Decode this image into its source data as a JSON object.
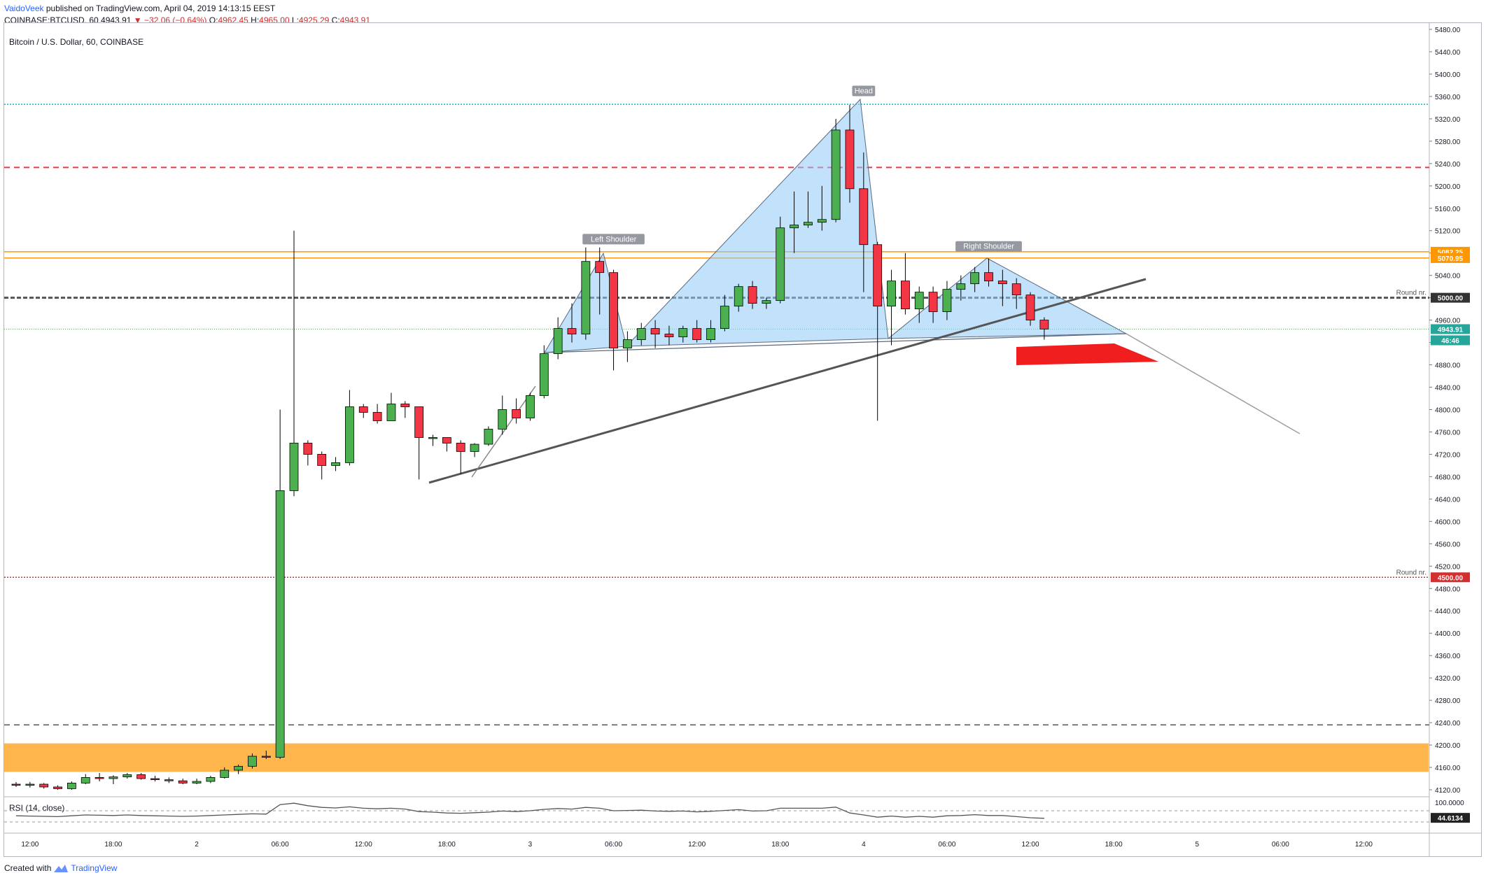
{
  "header": {
    "author": "VaidoVeek",
    "published_text": "published on TradingView.com, April 04, 2019 14:13:15 EEST",
    "symbol": "COINBASE:BTCUSD, 60",
    "last": "4943.91",
    "change": "−32.06 (−0.64%)",
    "o_label": "O:",
    "o": "4962.45",
    "h_label": "H:",
    "h": "4965.00",
    "l_label": "L:",
    "l": "4925.29",
    "c_label": "C:",
    "c": "4943.91"
  },
  "chart_title": "Bitcoin / U.S. Dollar, 60, COINBASE",
  "rsi_label": "RSI (14, close)",
  "footer": {
    "created_with": "Created with",
    "brand": "TradingView"
  },
  "colors": {
    "up": "#4caf50",
    "down": "#f23645",
    "pattern_fill": "#90caf9",
    "orange": "#ff9800",
    "support_zone": "#ffb74d",
    "red_line": "#f23645",
    "cyan_line": "#00bcd4",
    "trend": "#555555"
  },
  "chart_data": {
    "type": "candlestick",
    "ylim": [
      4110,
      5490
    ],
    "y_ticks": [
      4120,
      4160,
      4200,
      4240,
      4280,
      4320,
      4360,
      4400,
      4440,
      4480,
      4520,
      4560,
      4600,
      4640,
      4680,
      4720,
      4760,
      4800,
      4840,
      4880,
      4920,
      4960,
      5000,
      5040,
      5080,
      5120,
      5160,
      5200,
      5240,
      5280,
      5320,
      5360,
      5400,
      5440,
      5480
    ],
    "y_tick_labels": [
      "4120.00",
      "4160.00",
      "4200.00",
      "4240.00",
      "4280.00",
      "4320.00",
      "4360.00",
      "4400.00",
      "4440.00",
      "4480.00",
      "4520.00",
      "4560.00",
      "4600.00",
      "4640.00",
      "4680.00",
      "4720.00",
      "4760.00",
      "4800.00",
      "4840.00",
      "4880.00",
      "4920.00",
      "4960.00",
      "5000.00",
      "5040.00",
      "5080.00",
      "5120.00",
      "5160.00",
      "5200.00",
      "5240.00",
      "5280.00",
      "5320.00",
      "5360.00",
      "5400.00",
      "5440.00",
      "5480.00"
    ],
    "x_tick_labels": [
      {
        "label": "12:00",
        "bar": 1
      },
      {
        "label": "18:00",
        "bar": 7
      },
      {
        "label": "2",
        "bar": 13
      },
      {
        "label": "06:00",
        "bar": 19
      },
      {
        "label": "12:00",
        "bar": 25
      },
      {
        "label": "18:00",
        "bar": 31
      },
      {
        "label": "3",
        "bar": 37
      },
      {
        "label": "06:00",
        "bar": 43
      },
      {
        "label": "12:00",
        "bar": 49
      },
      {
        "label": "18:00",
        "bar": 55
      },
      {
        "label": "4",
        "bar": 61
      },
      {
        "label": "06:00",
        "bar": 67
      },
      {
        "label": "12:00",
        "bar": 73
      },
      {
        "label": "18:00",
        "bar": 79
      },
      {
        "label": "5",
        "bar": 85
      },
      {
        "label": "06:00",
        "bar": 91
      },
      {
        "label": "12:00",
        "bar": 97
      }
    ],
    "candles": [
      [
        4130,
        4134,
        4125,
        4128
      ],
      [
        4128,
        4134,
        4124,
        4130
      ],
      [
        4130,
        4132,
        4122,
        4125
      ],
      [
        4125,
        4128,
        4120,
        4122
      ],
      [
        4122,
        4135,
        4120,
        4132
      ],
      [
        4132,
        4148,
        4130,
        4142
      ],
      [
        4142,
        4150,
        4135,
        4140
      ],
      [
        4140,
        4146,
        4130,
        4143
      ],
      [
        4143,
        4150,
        4140,
        4147
      ],
      [
        4147,
        4150,
        4138,
        4140
      ],
      [
        4140,
        4145,
        4135,
        4138
      ],
      [
        4138,
        4142,
        4132,
        4136
      ],
      [
        4136,
        4140,
        4130,
        4132
      ],
      [
        4132,
        4140,
        4130,
        4135
      ],
      [
        4135,
        4145,
        4132,
        4142
      ],
      [
        4142,
        4160,
        4140,
        4155
      ],
      [
        4155,
        4165,
        4148,
        4162
      ],
      [
        4162,
        4185,
        4158,
        4180
      ],
      [
        4180,
        4190,
        4175,
        4178
      ],
      [
        4178,
        4800,
        4175,
        4655
      ],
      [
        4655,
        5120,
        4645,
        4740
      ],
      [
        4740,
        4745,
        4700,
        4720
      ],
      [
        4720,
        4725,
        4675,
        4700
      ],
      [
        4700,
        4715,
        4690,
        4705
      ],
      [
        4705,
        4835,
        4700,
        4805
      ],
      [
        4805,
        4810,
        4785,
        4795
      ],
      [
        4795,
        4810,
        4775,
        4780
      ],
      [
        4780,
        4830,
        4780,
        4810
      ],
      [
        4810,
        4815,
        4785,
        4805
      ],
      [
        4805,
        4805,
        4675,
        4750
      ],
      [
        4750,
        4755,
        4735,
        4750
      ],
      [
        4750,
        4750,
        4725,
        4740
      ],
      [
        4740,
        4745,
        4685,
        4725
      ],
      [
        4725,
        4740,
        4715,
        4738
      ],
      [
        4738,
        4770,
        4735,
        4765
      ],
      [
        4765,
        4825,
        4755,
        4800
      ],
      [
        4800,
        4820,
        4775,
        4785
      ],
      [
        4785,
        4830,
        4780,
        4825
      ],
      [
        4825,
        4915,
        4820,
        4900
      ],
      [
        4900,
        4965,
        4890,
        4945
      ],
      [
        4945,
        4990,
        4920,
        4935
      ],
      [
        4935,
        5090,
        4925,
        5065
      ],
      [
        5065,
        5090,
        4970,
        5045
      ],
      [
        5045,
        5050,
        4870,
        4910
      ],
      [
        4910,
        4940,
        4885,
        4925
      ],
      [
        4925,
        4955,
        4915,
        4945
      ],
      [
        4945,
        4960,
        4910,
        4935
      ],
      [
        4935,
        4950,
        4915,
        4930
      ],
      [
        4930,
        4950,
        4920,
        4945
      ],
      [
        4945,
        4960,
        4920,
        4925
      ],
      [
        4925,
        4960,
        4920,
        4945
      ],
      [
        4945,
        5005,
        4940,
        4985
      ],
      [
        4985,
        5025,
        4975,
        5020
      ],
      [
        5020,
        5030,
        4980,
        4990
      ],
      [
        4990,
        5000,
        4980,
        4995
      ],
      [
        4995,
        5145,
        4990,
        5125
      ],
      [
        5125,
        5190,
        5080,
        5130
      ],
      [
        5130,
        5190,
        5125,
        5135
      ],
      [
        5135,
        5200,
        5120,
        5140
      ],
      [
        5140,
        5320,
        5135,
        5300
      ],
      [
        5300,
        5345,
        5170,
        5195
      ],
      [
        5195,
        5260,
        5010,
        5095
      ],
      [
        5095,
        5100,
        4780,
        4985
      ],
      [
        4985,
        5050,
        4915,
        5030
      ],
      [
        5030,
        5080,
        4970,
        4980
      ],
      [
        4980,
        5020,
        4955,
        5010
      ],
      [
        5010,
        5020,
        4955,
        4975
      ],
      [
        4975,
        5030,
        4960,
        5015
      ],
      [
        5015,
        5040,
        4995,
        5025
      ],
      [
        5025,
        5055,
        5010,
        5045
      ],
      [
        5045,
        5070,
        5020,
        5030
      ],
      [
        5030,
        5050,
        4985,
        5025
      ],
      [
        5025,
        5035,
        4980,
        5005
      ],
      [
        5005,
        5010,
        4950,
        4960
      ],
      [
        4960,
        4965,
        4925,
        4944
      ]
    ],
    "rsi": [
      52,
      51,
      50,
      49,
      52,
      55,
      54,
      53,
      55,
      53,
      52,
      51,
      50,
      51,
      53,
      55,
      57,
      59,
      58,
      92,
      97,
      88,
      82,
      80,
      84,
      79,
      77,
      79,
      76,
      67,
      65,
      62,
      61,
      63,
      65,
      69,
      67,
      70,
      75,
      78,
      76,
      82,
      79,
      70,
      71,
      72,
      69,
      68,
      69,
      66,
      68,
      71,
      74,
      69,
      70,
      79,
      79,
      79,
      79,
      83,
      62,
      55,
      47,
      51,
      47,
      50,
      47,
      52,
      53,
      56,
      53,
      53,
      49,
      45,
      43
    ],
    "rsi_ticks": [
      {
        "v": 100,
        "label": "100.0000"
      }
    ],
    "rsi_last_label": "44.6134",
    "levels": [
      {
        "v": 5082.25,
        "label": "5082.25",
        "color": "#ff9800",
        "style": "solid"
      },
      {
        "v": 5070.95,
        "label": "5070.95",
        "color": "#ff9800",
        "style": "solid"
      },
      {
        "v": 5000,
        "label": "5000.00",
        "color": "#555555",
        "style": "dashed",
        "tag": "Round nr."
      },
      {
        "v": 4500,
        "label": "4500.00",
        "color": "#d32f2f",
        "style": "dotted",
        "tag": "Round nr."
      },
      {
        "v": 5233,
        "label": "",
        "color": "#f23645",
        "style": "dashed"
      },
      {
        "v": 5346,
        "label": "",
        "color": "#00bcd4",
        "style": "dotted"
      },
      {
        "v": 4236,
        "label": "",
        "color": "#555555",
        "style": "dashed"
      }
    ],
    "price_label": "4943.91",
    "countdown_label": "46:46",
    "support_zone": [
      4152,
      4203
    ],
    "annotations": [
      {
        "text": "Left Shoulder",
        "bar": 43,
        "price": 5103
      },
      {
        "text": "Head",
        "bar": 61,
        "price": 5368
      },
      {
        "text": "Right Shoulder",
        "bar": 70,
        "price": 5090
      }
    ]
  }
}
